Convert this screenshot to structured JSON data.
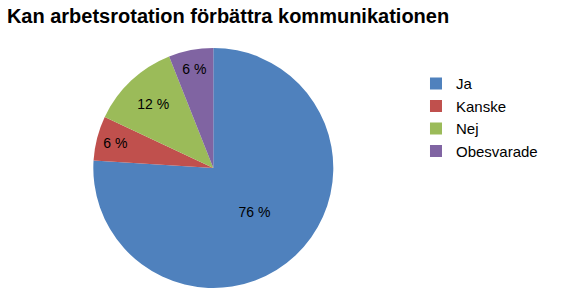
{
  "chart_data": {
    "type": "pie",
    "title": "Kan arbetsrotation förbättra kommunikationen",
    "categories": [
      "Ja",
      "Kanske",
      "Nej",
      "Obesvarade"
    ],
    "values": [
      76,
      6,
      12,
      6
    ],
    "value_labels": [
      "76 %",
      "6 %",
      "12 %",
      "6 %"
    ],
    "colors": [
      "#4f81bd",
      "#c0504d",
      "#9bbb59",
      "#8064a2"
    ],
    "data_labels": true,
    "legend": "right"
  }
}
